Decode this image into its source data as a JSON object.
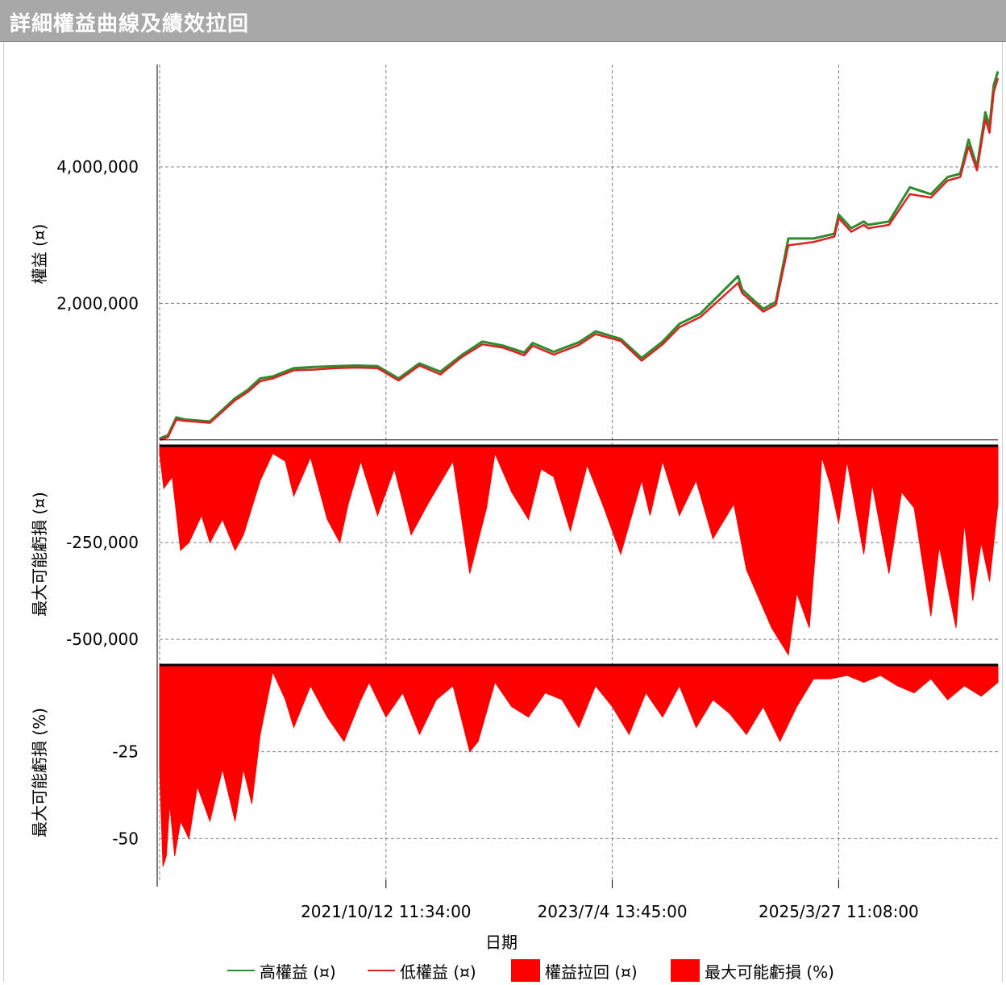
{
  "title": "詳細權益曲線及績效拉回",
  "colors": {
    "high": "#2e8b2e",
    "low": "#e02020",
    "fill": "#ff0000",
    "grid": "#808080"
  },
  "chart_data": [
    {
      "type": "line",
      "ylabel": "權益 (¤)",
      "ylim": [
        -50000,
        5500000
      ],
      "yticks": [
        {
          "value": 2000000,
          "label": "2,000,000"
        },
        {
          "value": 4000000,
          "label": "4,000,000"
        }
      ],
      "series": [
        {
          "name": "高權益 (¤)",
          "x": [
            0,
            0.01,
            0.02,
            0.03,
            0.06,
            0.09,
            0.105,
            0.12,
            0.135,
            0.16,
            0.185,
            0.21,
            0.235,
            0.26,
            0.285,
            0.31,
            0.335,
            0.36,
            0.385,
            0.41,
            0.435,
            0.445,
            0.47,
            0.5,
            0.52,
            0.55,
            0.575,
            0.6,
            0.62,
            0.645,
            0.69,
            0.695,
            0.72,
            0.735,
            0.75,
            0.78,
            0.805,
            0.81,
            0.825,
            0.84,
            0.845,
            0.87,
            0.895,
            0.92,
            0.94,
            0.955,
            0.965,
            0.975,
            0.985,
            0.99,
            0.995,
            1.0
          ],
          "y": [
            20000,
            70000,
            330000,
            300000,
            270000,
            610000,
            730000,
            900000,
            930000,
            1050000,
            1070000,
            1080000,
            1090000,
            1080000,
            900000,
            1120000,
            1000000,
            1240000,
            1440000,
            1380000,
            1280000,
            1420000,
            1290000,
            1430000,
            1590000,
            1480000,
            1200000,
            1440000,
            1700000,
            1850000,
            2400000,
            2200000,
            1920000,
            2020000,
            2950000,
            2950000,
            3020000,
            3300000,
            3100000,
            3200000,
            3150000,
            3200000,
            3700000,
            3600000,
            3850000,
            3900000,
            4400000,
            4000000,
            4800000,
            4600000,
            5200000,
            5400000
          ]
        },
        {
          "name": "低權益 (¤)",
          "x": [
            0,
            0.01,
            0.02,
            0.03,
            0.06,
            0.09,
            0.105,
            0.12,
            0.135,
            0.16,
            0.185,
            0.21,
            0.235,
            0.26,
            0.285,
            0.31,
            0.335,
            0.36,
            0.385,
            0.41,
            0.435,
            0.445,
            0.47,
            0.5,
            0.52,
            0.55,
            0.575,
            0.6,
            0.62,
            0.645,
            0.69,
            0.695,
            0.72,
            0.735,
            0.75,
            0.78,
            0.805,
            0.81,
            0.825,
            0.84,
            0.845,
            0.87,
            0.895,
            0.92,
            0.94,
            0.955,
            0.965,
            0.975,
            0.985,
            0.99,
            0.995,
            1.0
          ],
          "y": [
            0,
            40000,
            300000,
            280000,
            250000,
            580000,
            700000,
            860000,
            900000,
            1020000,
            1030000,
            1050000,
            1060000,
            1050000,
            870000,
            1090000,
            960000,
            1210000,
            1400000,
            1350000,
            1240000,
            1380000,
            1250000,
            1390000,
            1550000,
            1450000,
            1160000,
            1400000,
            1650000,
            1800000,
            2300000,
            2150000,
            1880000,
            1980000,
            2850000,
            2900000,
            2980000,
            3250000,
            3050000,
            3150000,
            3100000,
            3150000,
            3600000,
            3550000,
            3800000,
            3850000,
            4300000,
            3950000,
            4700000,
            4500000,
            5100000,
            5300000
          ]
        }
      ]
    },
    {
      "type": "area",
      "ylabel": "最大可能虧損 (¤)",
      "ylim": [
        -560000,
        0
      ],
      "yticks": [
        {
          "value": -250000,
          "label": "-250,000"
        },
        {
          "value": -500000,
          "label": "-500,000"
        }
      ],
      "series": [
        {
          "name": "權益拉回 (¤)",
          "x": [
            0,
            0.005,
            0.015,
            0.025,
            0.035,
            0.05,
            0.06,
            0.075,
            0.09,
            0.1,
            0.12,
            0.135,
            0.15,
            0.16,
            0.18,
            0.2,
            0.215,
            0.225,
            0.24,
            0.26,
            0.28,
            0.3,
            0.32,
            0.35,
            0.37,
            0.39,
            0.4,
            0.42,
            0.44,
            0.455,
            0.47,
            0.49,
            0.51,
            0.53,
            0.55,
            0.575,
            0.585,
            0.6,
            0.62,
            0.64,
            0.66,
            0.685,
            0.7,
            0.72,
            0.73,
            0.75,
            0.76,
            0.775,
            0.785,
            0.79,
            0.8,
            0.81,
            0.82,
            0.84,
            0.85,
            0.87,
            0.885,
            0.9,
            0.92,
            0.93,
            0.95,
            0.96,
            0.97,
            0.98,
            0.99,
            1.0
          ],
          "y": [
            -20000,
            -110000,
            -80000,
            -270000,
            -250000,
            -180000,
            -250000,
            -190000,
            -270000,
            -230000,
            -90000,
            -20000,
            -40000,
            -130000,
            -30000,
            -190000,
            -250000,
            -150000,
            -40000,
            -180000,
            -60000,
            -230000,
            -150000,
            -40000,
            -330000,
            -160000,
            -20000,
            -120000,
            -190000,
            -60000,
            -80000,
            -220000,
            -50000,
            -160000,
            -280000,
            -90000,
            -180000,
            -40000,
            -180000,
            -90000,
            -240000,
            -150000,
            -320000,
            -420000,
            -470000,
            -540000,
            -380000,
            -470000,
            -200000,
            -30000,
            -100000,
            -200000,
            -40000,
            -280000,
            -100000,
            -330000,
            -120000,
            -160000,
            -440000,
            -260000,
            -470000,
            -200000,
            -400000,
            -250000,
            -350000,
            -150000
          ]
        }
      ]
    },
    {
      "type": "area",
      "ylabel": "最大可能虧損 (%)",
      "ylim": [
        -62,
        0
      ],
      "yticks": [
        {
          "value": -25,
          "label": "-25"
        },
        {
          "value": -50,
          "label": "-50"
        }
      ],
      "series": [
        {
          "name": "最大可能虧損 (%)",
          "x": [
            0,
            0.004,
            0.008,
            0.012,
            0.018,
            0.025,
            0.035,
            0.045,
            0.06,
            0.075,
            0.09,
            0.1,
            0.11,
            0.12,
            0.13,
            0.135,
            0.15,
            0.16,
            0.18,
            0.2,
            0.22,
            0.24,
            0.25,
            0.27,
            0.29,
            0.31,
            0.33,
            0.35,
            0.37,
            0.38,
            0.4,
            0.42,
            0.44,
            0.46,
            0.48,
            0.5,
            0.52,
            0.54,
            0.56,
            0.58,
            0.6,
            0.62,
            0.64,
            0.66,
            0.68,
            0.7,
            0.72,
            0.74,
            0.76,
            0.78,
            0.8,
            0.82,
            0.84,
            0.86,
            0.88,
            0.9,
            0.92,
            0.94,
            0.96,
            0.98,
            1.0
          ],
          "y": [
            -30,
            -58,
            -55,
            -40,
            -55,
            -45,
            -50,
            -35,
            -45,
            -30,
            -45,
            -30,
            -40,
            -20,
            -8,
            -2,
            -10,
            -18,
            -6,
            -15,
            -22,
            -10,
            -5,
            -15,
            -8,
            -20,
            -10,
            -6,
            -25,
            -22,
            -5,
            -12,
            -15,
            -8,
            -10,
            -18,
            -6,
            -12,
            -20,
            -8,
            -15,
            -6,
            -18,
            -10,
            -14,
            -20,
            -12,
            -22,
            -12,
            -4,
            -4,
            -3,
            -5,
            -3,
            -6,
            -8,
            -4,
            -10,
            -6,
            -9,
            -5
          ]
        }
      ]
    }
  ],
  "xaxis": {
    "label": "日期",
    "ticks": [
      {
        "pos": 0.27,
        "label": "2021/10/12 11:34:00"
      },
      {
        "pos": 0.54,
        "label": "2023/7/4 13:45:00"
      },
      {
        "pos": 0.81,
        "label": "2025/3/27 11:08:00"
      }
    ]
  },
  "legend": [
    {
      "label": "高權益 (¤)",
      "kind": "line",
      "color": "#2e8b2e"
    },
    {
      "label": "低權益 (¤)",
      "kind": "line",
      "color": "#e02020"
    },
    {
      "label": "權益拉回 (¤)",
      "kind": "box",
      "color": "#ff0000"
    },
    {
      "label": "最大可能虧損 (%)",
      "kind": "box",
      "color": "#ff0000"
    }
  ]
}
